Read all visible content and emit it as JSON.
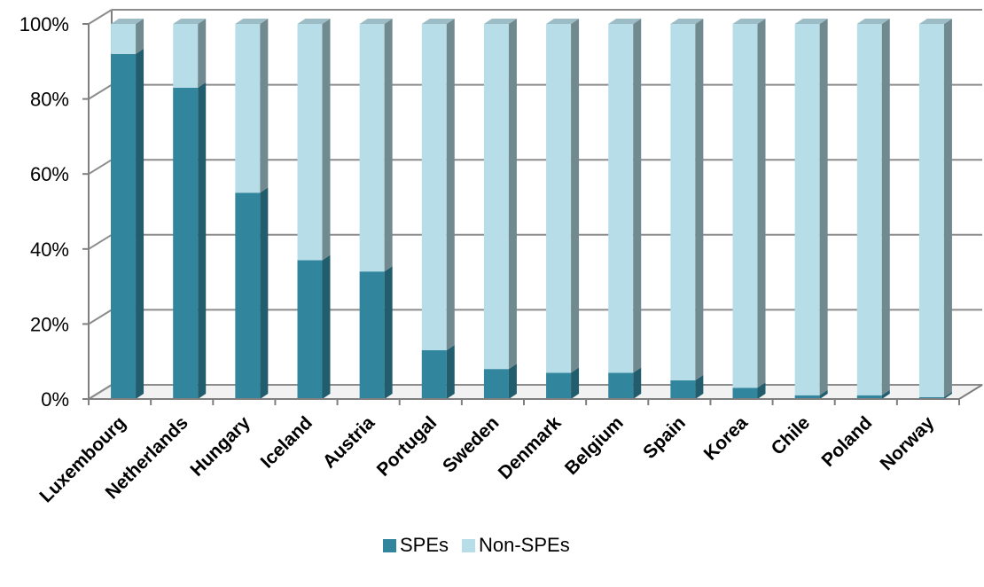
{
  "chart_data": {
    "type": "bar",
    "stacked": "percent",
    "categories": [
      "Luxembourg",
      "Netherlands",
      "Hungary",
      "Iceland",
      "Austria",
      "Portugal",
      "Sweden",
      "Denmark",
      "Belgium",
      "Spain",
      "Korea",
      "Chile",
      "Poland",
      "Norway"
    ],
    "series": [
      {
        "name": "SPEs",
        "color": "#31859C",
        "values": [
          92,
          83,
          55,
          37,
          34,
          13,
          8,
          7,
          7,
          5,
          3,
          1,
          1,
          0.5
        ]
      },
      {
        "name": "Non-SPEs",
        "color": "#B7DEE8",
        "values": [
          8,
          17,
          45,
          63,
          66,
          87,
          92,
          93,
          93,
          95,
          97,
          99,
          99,
          99.5
        ]
      }
    ],
    "yticks": [
      "0%",
      "20%",
      "40%",
      "60%",
      "80%",
      "100%"
    ],
    "ylim": [
      0,
      100
    ],
    "grid": true,
    "legend": "bottom",
    "three_d": true
  }
}
